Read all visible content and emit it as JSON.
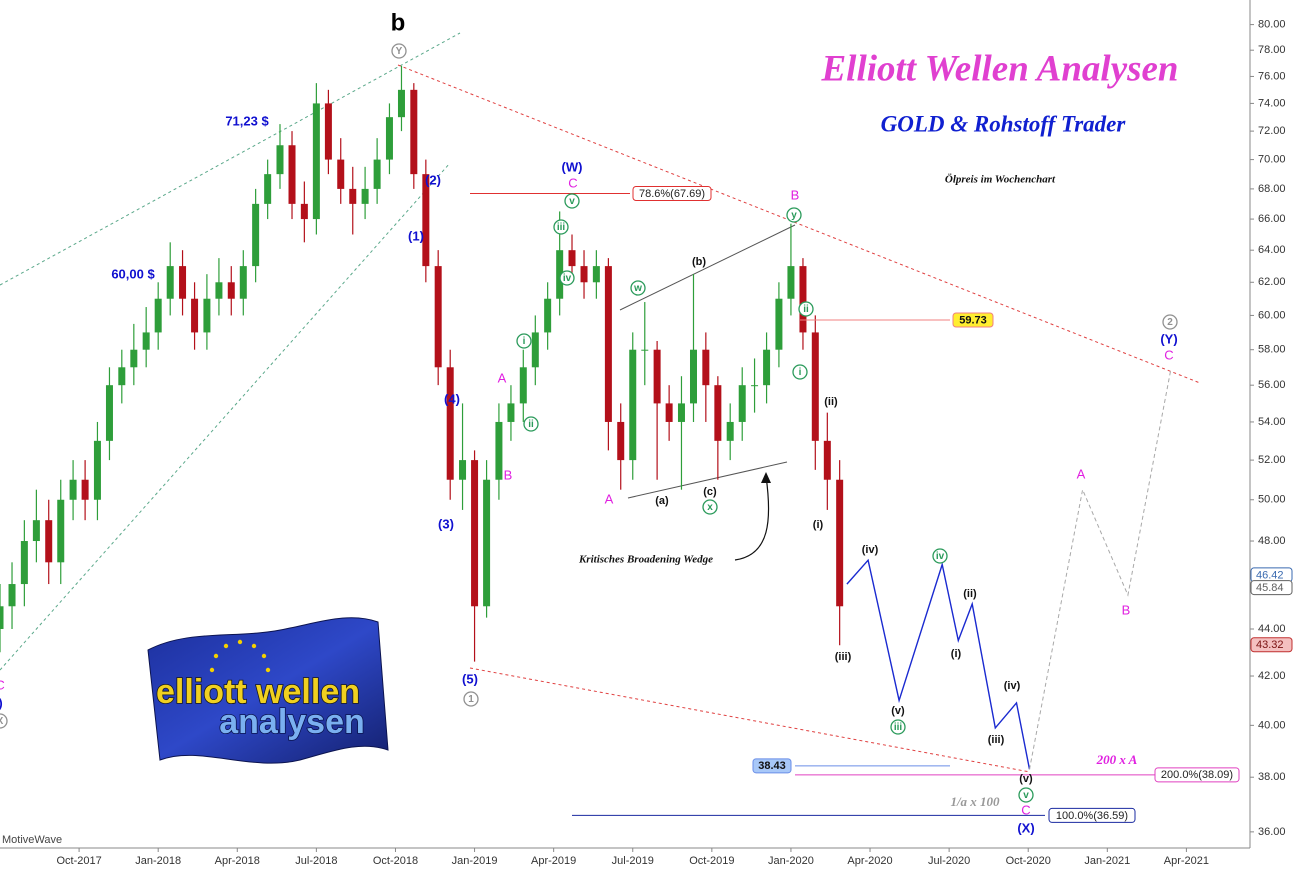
{
  "chart_data": {
    "type": "candlestick",
    "title": "Elliott Wellen Analysen",
    "subtitle": "GOLD & Rohstoff Trader",
    "caption": "Ölpreis im Wochenchart",
    "watermark": "MotiveWave",
    "logo": [
      "elliott wellen",
      "analysen"
    ],
    "log_scale": true,
    "ylim": [
      35.43,
      81.97
    ],
    "yticks": [
      {
        "value": 36,
        "label": "36.00"
      },
      {
        "value": 38,
        "label": "38.00"
      },
      {
        "value": 40,
        "label": "40.00"
      },
      {
        "value": 42,
        "label": "42.00"
      },
      {
        "value": 44,
        "label": "44.00"
      },
      {
        "value": 46,
        "label": "46.00"
      },
      {
        "value": 48,
        "label": "48.00"
      },
      {
        "value": 50,
        "label": "50.00"
      },
      {
        "value": 52,
        "label": "52.00"
      },
      {
        "value": 54,
        "label": "54.00"
      },
      {
        "value": 56,
        "label": "56.00"
      },
      {
        "value": 58,
        "label": "58.00"
      },
      {
        "value": 60,
        "label": "60.00"
      },
      {
        "value": 62,
        "label": "62.00"
      },
      {
        "value": 64,
        "label": "64.00"
      },
      {
        "value": 66,
        "label": "66.00"
      },
      {
        "value": 68,
        "label": "68.00"
      },
      {
        "value": 70,
        "label": "70.00"
      },
      {
        "value": 72,
        "label": "72.00"
      },
      {
        "value": 74,
        "label": "74.00"
      },
      {
        "value": 76,
        "label": "76.00"
      },
      {
        "value": 78,
        "label": "78.00"
      },
      {
        "value": 80,
        "label": "80.00"
      }
    ],
    "xlim": [
      2017.5,
      2021.451
    ],
    "xticks": [
      {
        "value": 2017.75,
        "label": "Oct-2017"
      },
      {
        "value": 2018.0,
        "label": "Jan-2018"
      },
      {
        "value": 2018.25,
        "label": "Apr-2018"
      },
      {
        "value": 2018.5,
        "label": "Jul-2018"
      },
      {
        "value": 2018.75,
        "label": "Oct-2018"
      },
      {
        "value": 2019.0,
        "label": "Jan-2019"
      },
      {
        "value": 2019.25,
        "label": "Apr-2019"
      },
      {
        "value": 2019.5,
        "label": "Jul-2019"
      },
      {
        "value": 2019.75,
        "label": "Oct-2019"
      },
      {
        "value": 2020.0,
        "label": "Jan-2020"
      },
      {
        "value": 2020.25,
        "label": "Apr-2020"
      },
      {
        "value": 2020.5,
        "label": "Jul-2020"
      },
      {
        "value": 2020.75,
        "label": "Oct-2020"
      },
      {
        "value": 2021.0,
        "label": "Jan-2021"
      },
      {
        "value": 2021.25,
        "label": "Apr-2021"
      }
    ],
    "up_color": "#2e9e3a",
    "down_color": "#b3101a",
    "candles": {
      "x": [
        2017.5,
        2017.538,
        2017.577,
        2017.615,
        2017.654,
        2017.692,
        2017.731,
        2017.769,
        2017.808,
        2017.846,
        2017.885,
        2017.923,
        2017.962,
        2018.0,
        2018.038,
        2018.077,
        2018.115,
        2018.154,
        2018.192,
        2018.231,
        2018.269,
        2018.308,
        2018.346,
        2018.385,
        2018.423,
        2018.462,
        2018.5,
        2018.538,
        2018.577,
        2018.615,
        2018.654,
        2018.692,
        2018.731,
        2018.769,
        2018.808,
        2018.846,
        2018.885,
        2018.923,
        2018.962,
        2019.0,
        2019.038,
        2019.077,
        2019.115,
        2019.154,
        2019.192,
        2019.231,
        2019.269,
        2019.308,
        2019.346,
        2019.385,
        2019.423,
        2019.462,
        2019.5,
        2019.538,
        2019.577,
        2019.615,
        2019.654,
        2019.692,
        2019.731,
        2019.769,
        2019.808,
        2019.846,
        2019.885,
        2019.923,
        2019.962,
        2020.0,
        2020.038,
        2020.077,
        2020.115,
        2020.154
      ],
      "open": [
        44,
        45,
        46,
        48,
        49,
        47,
        50,
        51,
        50,
        53,
        56,
        57,
        58,
        59,
        61,
        63,
        61,
        59,
        61,
        62,
        61,
        63,
        67,
        69,
        71,
        67,
        66,
        74,
        70,
        68,
        67,
        68,
        70,
        73,
        75,
        69,
        63,
        57,
        51,
        52,
        45,
        51,
        54,
        55,
        57,
        59,
        61,
        64,
        63,
        62,
        63,
        54,
        52,
        58,
        58,
        55,
        54,
        55,
        58,
        56,
        53,
        54,
        56,
        56,
        58,
        61,
        63,
        59,
        53,
        51
      ],
      "high": [
        46,
        47,
        49,
        50.5,
        50,
        51,
        52,
        52,
        54,
        57,
        58,
        59.5,
        60.5,
        62,
        64.5,
        64,
        62,
        62.5,
        63.5,
        63,
        64,
        68,
        70,
        72.5,
        72,
        68.5,
        75.5,
        75,
        71.5,
        69.5,
        69.5,
        71.5,
        74,
        76.8,
        75.5,
        70,
        64,
        58,
        55,
        52.5,
        52,
        55,
        56,
        58,
        60,
        62,
        66.5,
        65,
        64,
        64,
        63.5,
        55,
        59,
        60.8,
        58.5,
        56,
        56.5,
        62.5,
        59,
        56.5,
        55,
        57,
        57.5,
        59,
        62,
        65.7,
        63.5,
        60,
        54.5,
        52
      ],
      "low": [
        43,
        44,
        45,
        47,
        46,
        46,
        49,
        49,
        49,
        52,
        55,
        56,
        57,
        58,
        60,
        60,
        58,
        58,
        60,
        60,
        60,
        62,
        66,
        68,
        66,
        64.5,
        65,
        69,
        67,
        65,
        66,
        67,
        69,
        72,
        68,
        62,
        56,
        50,
        49.5,
        42.6,
        44.5,
        50,
        53,
        54,
        56,
        58,
        60,
        62,
        61,
        61,
        52.5,
        50.5,
        51,
        56,
        51,
        53,
        50.5,
        54,
        54,
        51,
        52,
        53,
        54.5,
        55,
        57,
        60,
        58,
        51.5,
        49.5,
        43.3
      ],
      "close": [
        45,
        46,
        48,
        49,
        47,
        50,
        51,
        50,
        53,
        56,
        57,
        58,
        59,
        61,
        63,
        61,
        59,
        61,
        62,
        61,
        63,
        67,
        69,
        71,
        67,
        66,
        74,
        70,
        68,
        67,
        68,
        70,
        73,
        75,
        69,
        63,
        57,
        51,
        52,
        45,
        51,
        54,
        55,
        57,
        59,
        61,
        64,
        63,
        62,
        63,
        54,
        52,
        58,
        58,
        55,
        54,
        55,
        58,
        56,
        53,
        54,
        56,
        56,
        58,
        61,
        63,
        59,
        53,
        51,
        45
      ]
    },
    "projections": [
      {
        "color": "#1a2ad0",
        "style": "solid",
        "x": [
          2020.177,
          2020.244,
          2020.342,
          2020.478,
          2020.529,
          2020.573,
          2020.646,
          2020.713,
          2020.754
        ],
        "values": [
          46,
          47.1,
          41.0,
          46.9,
          43.5,
          45.1,
          39.9,
          40.9,
          38.3
        ]
      },
      {
        "color": "#a8a8a8",
        "style": "dashed",
        "x": [
          2020.754,
          2020.922,
          2021.065,
          2021.201
        ],
        "values": [
          38.3,
          50.5,
          45.5,
          56.9
        ]
      }
    ],
    "levels": [
      {
        "value": 67.69,
        "label": "78.6%(67.69)",
        "color": "#e03030"
      },
      {
        "value": 59.73,
        "color": "#f08080"
      },
      {
        "value": 38.43,
        "color": "#6a8ee8"
      },
      {
        "value": 38.09,
        "label": "200.0%(38.09)",
        "color": "#e040c0"
      },
      {
        "value": 36.59,
        "label": "100.0%(36.59)",
        "color": "#1a2aa0"
      }
    ],
    "price_tags": [
      {
        "value": 46.42,
        "color": "#3a6ab0"
      },
      {
        "value": 45.84,
        "color": "#606060"
      },
      {
        "value": 43.32,
        "color": "#c03030"
      }
    ],
    "annotations": [
      "b",
      "Y",
      "71,23 $",
      "60,00 $",
      "(2)",
      "(1)",
      "(4)",
      "(3)",
      "(5)",
      "1",
      "(W)",
      "C",
      "v",
      "iii",
      "iv",
      "i",
      "ii",
      "A",
      "B",
      "A",
      "w",
      "(b)",
      "(a)",
      "(c)",
      "x",
      "Kritisches Broadening Wedge",
      "B",
      "y",
      "ii",
      "i",
      "(ii)",
      "(i)",
      "(iii)",
      "(iv)",
      "iv",
      "(v)",
      "iii",
      "(ii)",
      "(i)",
      "(iv)",
      "(iii)",
      "(v)",
      "v",
      "C",
      "(X)",
      "200 x A",
      "1/a x 100",
      "A",
      "B",
      "2",
      "(Y)",
      "C",
      "C",
      "(Y)",
      "X"
    ]
  }
}
